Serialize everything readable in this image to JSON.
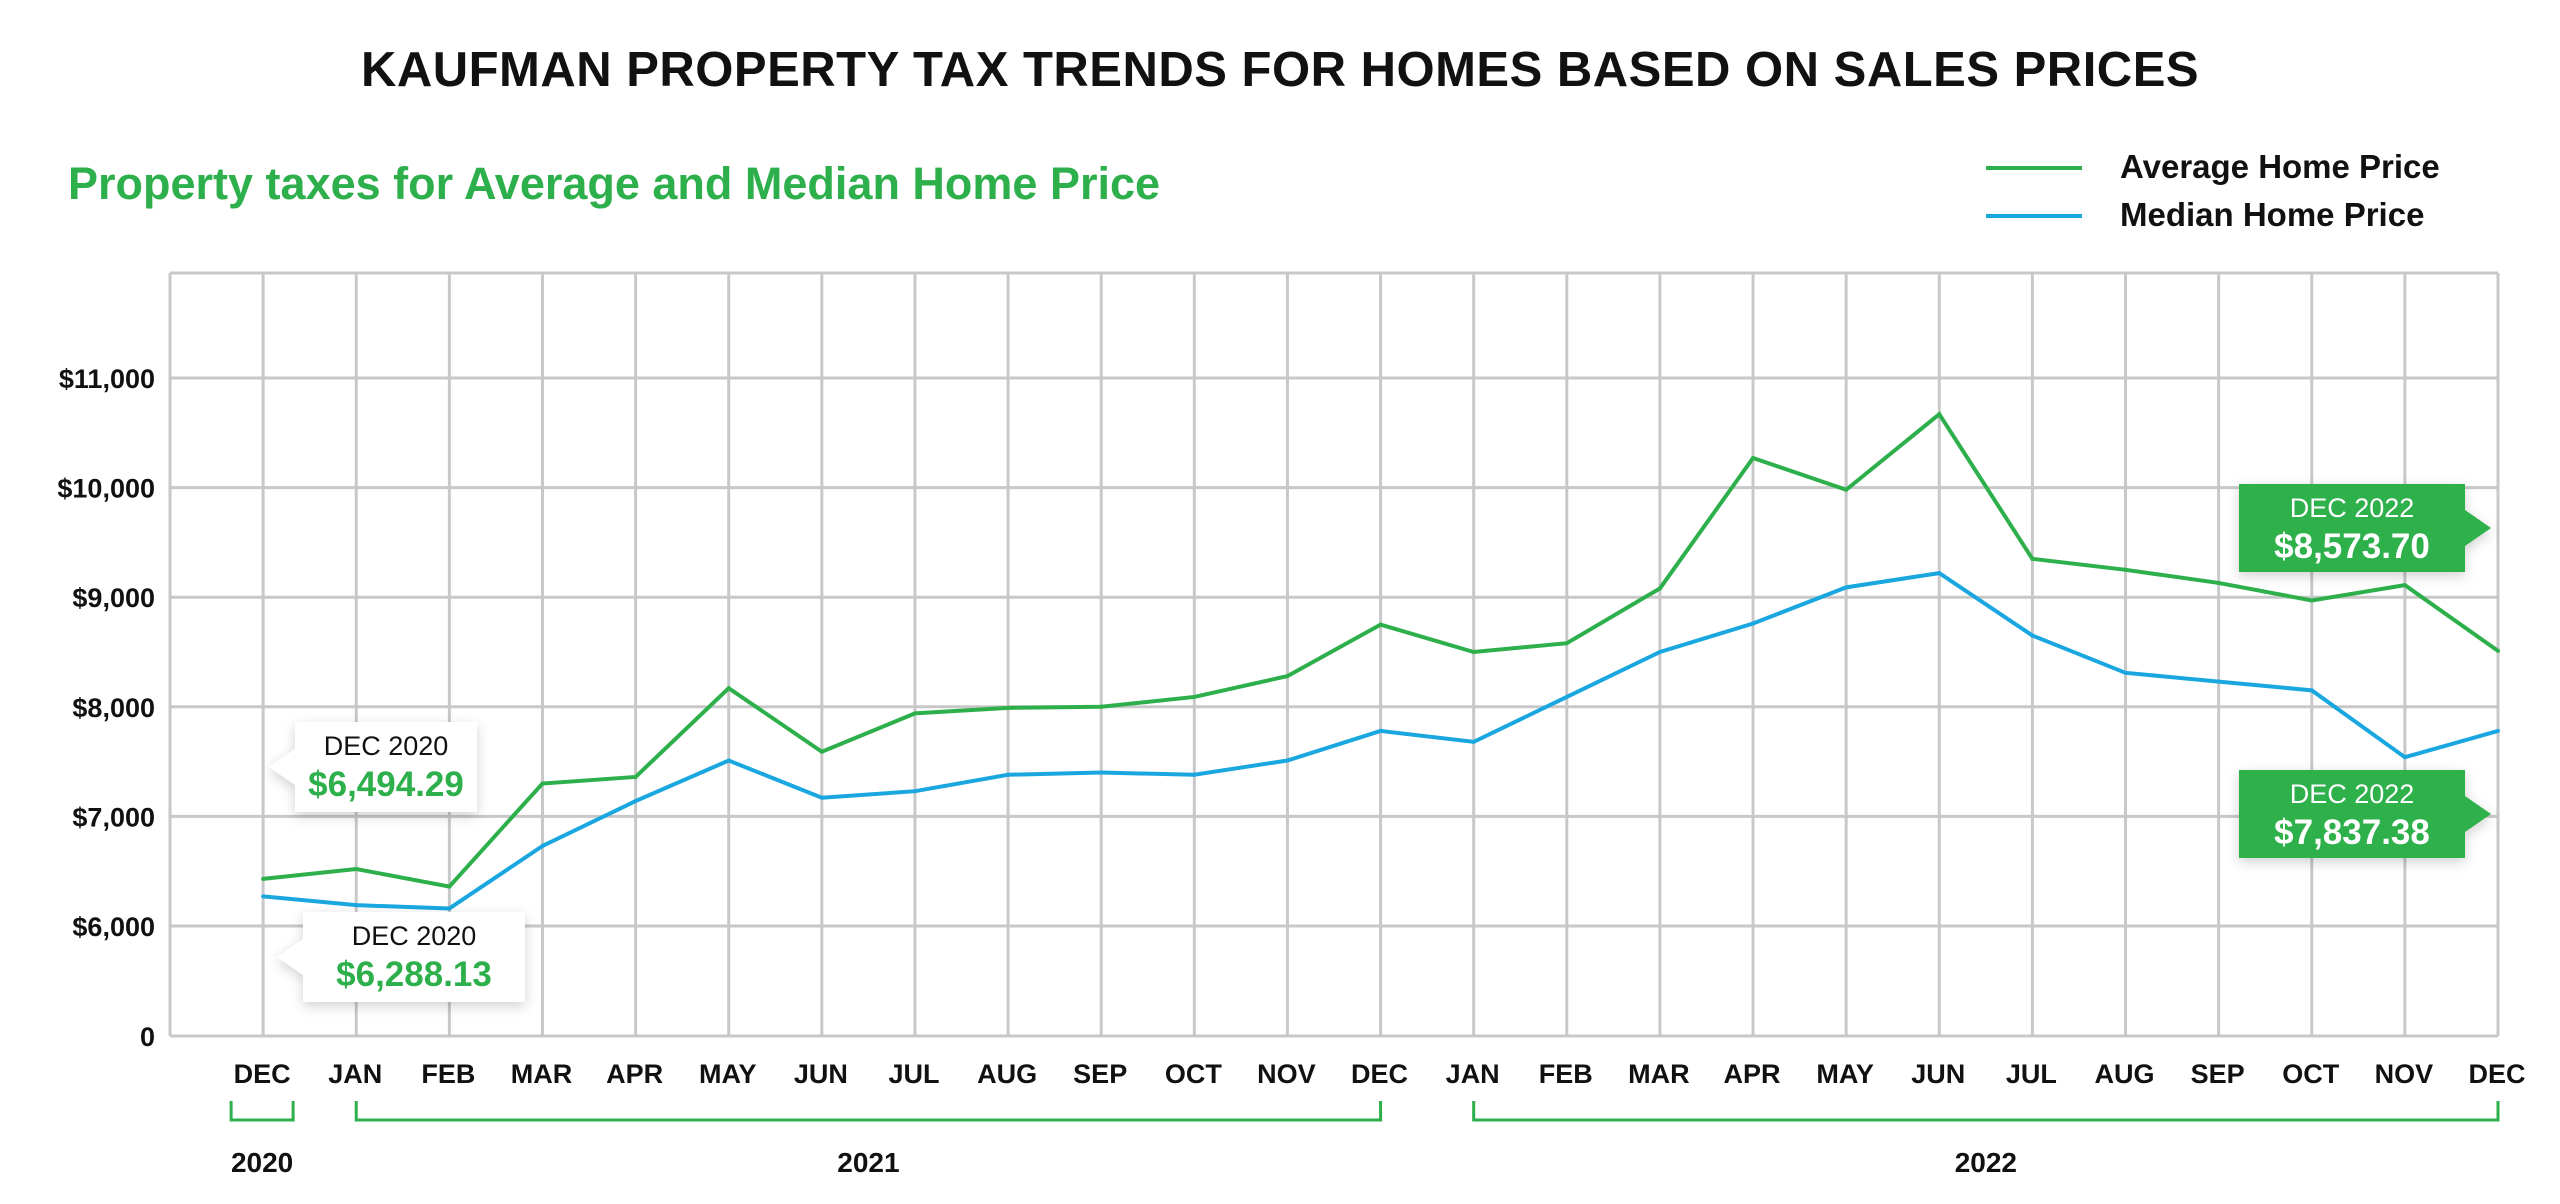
{
  "title": "KAUFMAN PROPERTY TAX TRENDS FOR HOMES BASED ON SALES PRICES",
  "subtitle": "Property taxes for Average and Median Home Price",
  "legend": [
    {
      "label": "Average Home Price",
      "color": "#2db04b"
    },
    {
      "label": "Median Home Price",
      "color": "#1aa7e0"
    }
  ],
  "callouts": [
    {
      "series": 0,
      "index": 0,
      "period": "DEC 2020",
      "value": "$6,494.29",
      "style": "white"
    },
    {
      "series": 1,
      "index": 0,
      "period": "DEC 2020",
      "value": "$6,288.13",
      "style": "white"
    },
    {
      "series": 0,
      "index": 25,
      "period": "DEC 2022",
      "value": "$8,573.70",
      "style": "green"
    },
    {
      "series": 1,
      "index": 25,
      "period": "DEC 2022",
      "value": "$7,837.38",
      "style": "green"
    }
  ],
  "chart_data": {
    "type": "line",
    "title": "KAUFMAN PROPERTY TAX TRENDS FOR HOMES BASED ON SALES PRICES",
    "subtitle": "Property taxes for Average and Median Home Price",
    "xlabel": "",
    "ylabel": "",
    "categories": [
      "DEC",
      "JAN",
      "FEB",
      "MAR",
      "APR",
      "MAY",
      "JUN",
      "JUL",
      "AUG",
      "SEP",
      "OCT",
      "NOV",
      "DEC",
      "JAN",
      "FEB",
      "MAR",
      "APR",
      "MAY",
      "JUN",
      "JUL",
      "AUG",
      "SEP",
      "OCT",
      "NOV",
      "DEC"
    ],
    "year_groups": [
      {
        "label": "2020",
        "start": 0,
        "end": 0
      },
      {
        "label": "2021",
        "start": 1,
        "end": 12
      },
      {
        "label": "2022",
        "start": 13,
        "end": 24
      }
    ],
    "y_ticks": [
      {
        "value": 0,
        "label": "0"
      },
      {
        "value": 6000,
        "label": "$6,000"
      },
      {
        "value": 7000,
        "label": "$7,000"
      },
      {
        "value": 8000,
        "label": "$8,000"
      },
      {
        "value": 9000,
        "label": "$9,000"
      },
      {
        "value": 10000,
        "label": "$10,000"
      },
      {
        "value": 11000,
        "label": "$11,000"
      }
    ],
    "ylim": [
      5000,
      12000
    ],
    "y_axis_break": "0 shown at bottom; axis starts effectively near $5,000",
    "grid": true,
    "legend_position": "top-right",
    "series": [
      {
        "name": "Average Home Price",
        "color": "#2db04b",
        "values": [
          6430,
          6520,
          6360,
          7300,
          7360,
          8170,
          7590,
          7940,
          7990,
          8000,
          8090,
          8280,
          8750,
          8500,
          8580,
          9080,
          10270,
          9980,
          10670,
          9350,
          9250,
          9130,
          8970,
          9110,
          8510
        ]
      },
      {
        "name": "Median Home Price",
        "color": "#1aa7e0",
        "values": [
          6270,
          6190,
          6160,
          6730,
          7140,
          7510,
          7170,
          7230,
          7380,
          7400,
          7380,
          7510,
          7780,
          7680,
          8090,
          8500,
          8760,
          9090,
          9220,
          8650,
          8310,
          8230,
          8150,
          7540,
          7780
        ]
      }
    ]
  }
}
